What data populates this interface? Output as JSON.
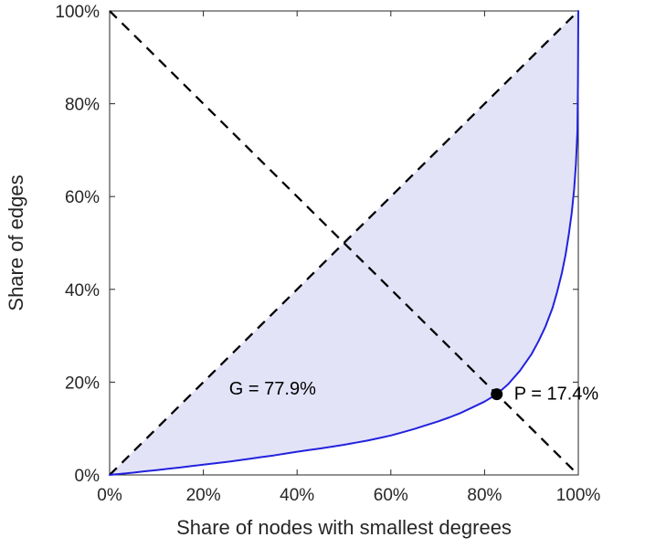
{
  "chart_data": {
    "type": "line",
    "title": "",
    "xlabel": "Share of nodes with smallest degrees",
    "ylabel": "Share of edges",
    "xlim": [
      0,
      100
    ],
    "ylim": [
      0,
      100
    ],
    "x_ticks": [
      0,
      20,
      40,
      60,
      80,
      100
    ],
    "y_ticks": [
      0,
      20,
      40,
      60,
      80,
      100
    ],
    "tick_suffix": "%",
    "grid": false,
    "legend": "none",
    "axis_color": "#262626",
    "fill_color": "#e3e3f8",
    "gini_percent": 77.9,
    "p_percent": 17.4,
    "lorenz_curve": {
      "name": "lorenz-curve-of-degree-distribution",
      "color": "#2222dd",
      "x": [
        0,
        2.5,
        5,
        7.5,
        10,
        12.5,
        15,
        17.5,
        20,
        22.5,
        25,
        27.5,
        30,
        32.5,
        35,
        37.5,
        40,
        42.5,
        45,
        47.5,
        50,
        52.5,
        55,
        57.5,
        60,
        62.5,
        65,
        67.5,
        70,
        72.5,
        75,
        77.5,
        80,
        82.6,
        85,
        87.5,
        90,
        91.5,
        93,
        94.5,
        95.5,
        96.5,
        97.3,
        98,
        98.6,
        99.1,
        99.5,
        99.8,
        99.93,
        100
      ],
      "y": [
        0,
        0.25,
        0.5,
        0.78,
        1.05,
        1.33,
        1.6,
        1.9,
        2.2,
        2.5,
        2.8,
        3.15,
        3.5,
        3.85,
        4.2,
        4.6,
        5.0,
        5.35,
        5.7,
        6.1,
        6.5,
        6.95,
        7.4,
        7.95,
        8.5,
        9.2,
        9.9,
        10.7,
        11.5,
        12.4,
        13.4,
        14.6,
        15.8,
        17.4,
        19.5,
        22.4,
        26.0,
        28.8,
        32.0,
        36.0,
        39.5,
        43.5,
        47.5,
        52.0,
        56.5,
        61.5,
        67.0,
        74.0,
        84.0,
        100
      ]
    },
    "diagonal": {
      "style": "dashed",
      "color": "#000000",
      "from": [
        0,
        0
      ],
      "to": [
        100,
        100
      ]
    },
    "antidiagonal": {
      "style": "dashed",
      "color": "#000000",
      "from": [
        0,
        100
      ],
      "to": [
        100,
        0
      ]
    },
    "marker_point": {
      "x": 82.6,
      "y": 17.4,
      "color": "#000000"
    },
    "annotations": [
      {
        "id": "gini",
        "text": "G = 77.9%",
        "x": 25.5,
        "y": 17.3
      },
      {
        "id": "p",
        "text": "P = 17.4%",
        "x": 86.3,
        "y": 16.2
      }
    ]
  }
}
